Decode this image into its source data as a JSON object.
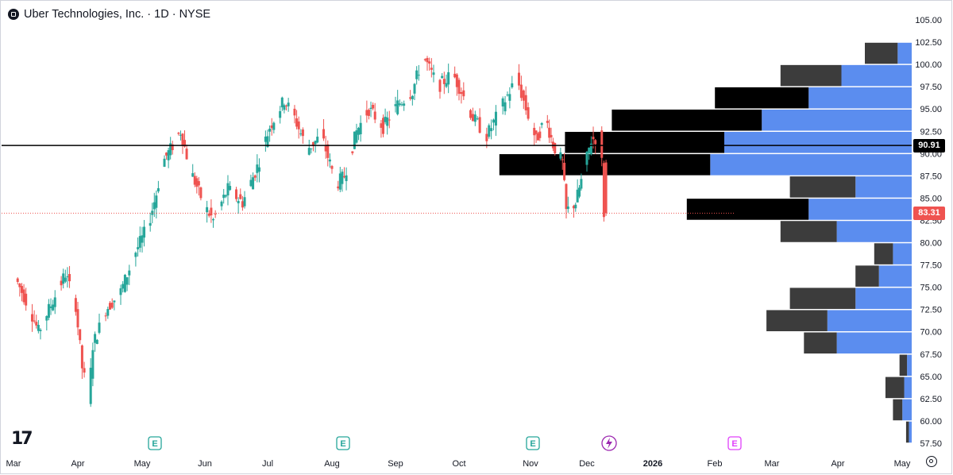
{
  "header": {
    "title": "Uber Technologies, Inc. · 1D · NYSE"
  },
  "badges": {
    "last_price": "83.31",
    "hline_price": "90.91",
    "earnings_label": "E"
  },
  "colors": {
    "up": "#26a69a",
    "down": "#ef5350",
    "volume_profile_up": "#5b8def",
    "volume_profile_down": "#000000",
    "volume_profile_down_light": "#3c3c3c",
    "hline": "#000000",
    "last_price": "#ef5350"
  },
  "chart_data": {
    "type": "candlestick",
    "title": "Uber Technologies, Inc. · 1D · NYSE",
    "y_axis": {
      "ticks": [
        "105.00",
        "102.50",
        "100.00",
        "97.50",
        "95.00",
        "92.50",
        "90.00",
        "87.50",
        "85.00",
        "82.50",
        "80.00",
        "77.50",
        "75.00",
        "72.50",
        "70.00",
        "67.50",
        "65.00",
        "62.50",
        "60.00",
        "57.50"
      ],
      "range": [
        56.5,
        106
      ]
    },
    "x_axis": {
      "ticks": [
        "Mar",
        "Apr",
        "May",
        "Jun",
        "Jul",
        "Aug",
        "Sep",
        "Oct",
        "Nov",
        "Dec",
        "2026",
        "Feb",
        "Mar",
        "Apr",
        "May"
      ]
    },
    "horizontal_line": 90.91,
    "last_price": 83.31,
    "price_path": [
      [
        "2025-03-03",
        76.0
      ],
      [
        "2025-03-10",
        72.5
      ],
      [
        "2025-03-14",
        70.0
      ],
      [
        "2025-03-20",
        73.0
      ],
      [
        "2025-03-27",
        76.5
      ],
      [
        "2025-04-01",
        73.0
      ],
      [
        "2025-04-04",
        66.0
      ],
      [
        "2025-04-07",
        62.5
      ],
      [
        "2025-04-09",
        68.5
      ],
      [
        "2025-04-15",
        72.5
      ],
      [
        "2025-04-22",
        74.5
      ],
      [
        "2025-04-29",
        79.0
      ],
      [
        "2025-05-05",
        82.0
      ],
      [
        "2025-05-09",
        85.5
      ],
      [
        "2025-05-12",
        89.0
      ],
      [
        "2025-05-16",
        90.5
      ],
      [
        "2025-05-21",
        92.5
      ],
      [
        "2025-05-26",
        88.0
      ],
      [
        "2025-06-02",
        84.0
      ],
      [
        "2025-06-06",
        82.5
      ],
      [
        "2025-06-13",
        86.0
      ],
      [
        "2025-06-20",
        84.5
      ],
      [
        "2025-06-27",
        88.5
      ],
      [
        "2025-07-03",
        93.0
      ],
      [
        "2025-07-10",
        96.0
      ],
      [
        "2025-07-15",
        94.0
      ],
      [
        "2025-07-21",
        90.5
      ],
      [
        "2025-07-28",
        92.0
      ],
      [
        "2025-08-04",
        86.5
      ],
      [
        "2025-08-08",
        87.5
      ],
      [
        "2025-08-14",
        92.5
      ],
      [
        "2025-08-20",
        95.0
      ],
      [
        "2025-08-27",
        93.0
      ],
      [
        "2025-09-03",
        95.5
      ],
      [
        "2025-09-10",
        97.0
      ],
      [
        "2025-09-15",
        101.0
      ],
      [
        "2025-09-22",
        97.5
      ],
      [
        "2025-09-29",
        99.0
      ],
      [
        "2025-10-03",
        97.0
      ],
      [
        "2025-10-08",
        94.0
      ],
      [
        "2025-10-14",
        92.0
      ],
      [
        "2025-10-20",
        95.0
      ],
      [
        "2025-10-27",
        98.5
      ],
      [
        "2025-10-31",
        95.0
      ],
      [
        "2025-11-05",
        91.5
      ],
      [
        "2025-11-10",
        94.0
      ],
      [
        "2025-11-14",
        91.0
      ],
      [
        "2025-11-19",
        89.0
      ],
      [
        "2025-11-21",
        83.5
      ],
      [
        "2025-11-26",
        84.5
      ],
      [
        "2025-12-01",
        88.5
      ],
      [
        "2025-12-04",
        91.5
      ],
      [
        "2025-12-08",
        92.0
      ],
      [
        "2025-12-09",
        89.0
      ],
      [
        "2025-12-10",
        83.31
      ]
    ],
    "volume_profile": [
      {
        "price": 101.25,
        "up": 1.5,
        "down": 3.5
      },
      {
        "price": 98.75,
        "up": 7.5,
        "down": 6.5
      },
      {
        "price": 96.25,
        "up": 11.0,
        "down": 10.0
      },
      {
        "price": 93.75,
        "up": 16.0,
        "down": 16.0
      },
      {
        "price": 91.25,
        "up": 20.0,
        "down": 17.0
      },
      {
        "price": 88.75,
        "up": 21.5,
        "down": 22.5
      },
      {
        "price": 86.25,
        "up": 6.0,
        "down": 7.0
      },
      {
        "price": 83.75,
        "up": 11.0,
        "down": 13.0
      },
      {
        "price": 81.25,
        "up": 8.0,
        "down": 6.0
      },
      {
        "price": 78.75,
        "up": 2.0,
        "down": 2.0
      },
      {
        "price": 76.25,
        "up": 3.5,
        "down": 2.5
      },
      {
        "price": 73.75,
        "up": 6.0,
        "down": 7.0
      },
      {
        "price": 71.25,
        "up": 9.0,
        "down": 6.5
      },
      {
        "price": 68.75,
        "up": 8.0,
        "down": 3.5
      },
      {
        "price": 66.25,
        "up": 0.5,
        "down": 0.8
      },
      {
        "price": 63.75,
        "up": 0.8,
        "down": 2.0
      },
      {
        "price": 61.25,
        "up": 1.0,
        "down": 1.0
      },
      {
        "price": 58.75,
        "up": 0.3,
        "down": 0.3
      }
    ]
  }
}
